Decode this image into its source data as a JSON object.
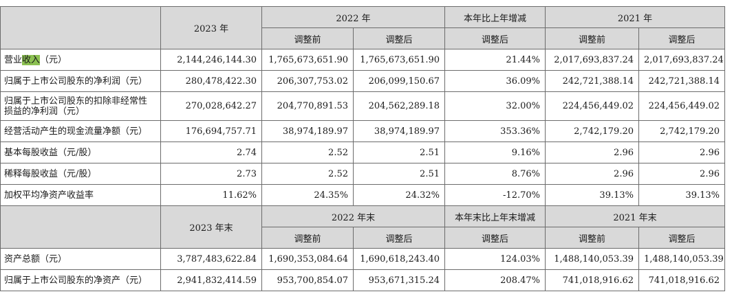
{
  "table1": {
    "header": {
      "col1": "2023 年",
      "group2022": "2022 年",
      "change": "本年比上年增减",
      "group2021": "2021 年",
      "sub_before": "调整前",
      "sub_after": "调整后",
      "change_sub": "调整后",
      "sub2021_before": "调整前",
      "sub2021_after": "调整后"
    },
    "row0_label_pre": "营业",
    "row0_label_hl": "收入",
    "row0_label_post": "（元）",
    "rows": [
      {
        "v2023": "2,144,246,144.30",
        "v2022b": "1,765,673,651.90",
        "v2022a": "1,765,673,651.90",
        "chg": "21.44%",
        "v2021b": "2,017,693,837.24",
        "v2021a": "2,017,693,837.24"
      },
      {
        "label": "归属于上市公司股东的净利润（元）",
        "v2023": "280,478,422.30",
        "v2022b": "206,307,753.02",
        "v2022a": "206,099,150.67",
        "chg": "36.09%",
        "v2021b": "242,721,388.14",
        "v2021a": "242,721,388.14"
      },
      {
        "label": "归属于上市公司股东的扣除非经常性损益的净利润（元）",
        "v2023": "270,028,642.27",
        "v2022b": "204,770,891.53",
        "v2022a": "204,562,289.18",
        "chg": "32.00%",
        "v2021b": "224,456,449.02",
        "v2021a": "224,456,449.02"
      },
      {
        "label": "经营活动产生的现金流量净额（元）",
        "v2023": "176,694,757.71",
        "v2022b": "38,974,189.97",
        "v2022a": "38,974,189.97",
        "chg": "353.36%",
        "v2021b": "2,742,179.20",
        "v2021a": "2,742,179.20"
      },
      {
        "label": "基本每股收益（元/股）",
        "v2023": "2.74",
        "v2022b": "2.52",
        "v2022a": "2.51",
        "chg": "9.16%",
        "v2021b": "2.96",
        "v2021a": "2.96"
      },
      {
        "label": "稀释每股收益（元/股）",
        "v2023": "2.73",
        "v2022b": "2.52",
        "v2022a": "2.51",
        "chg": "8.76%",
        "v2021b": "2.96",
        "v2021a": "2.96"
      },
      {
        "label": "加权平均净资产收益率",
        "v2023": "11.62%",
        "v2022b": "24.35%",
        "v2022a": "24.32%",
        "chg": "-12.70%",
        "v2021b": "39.13%",
        "v2021a": "39.13%"
      }
    ]
  },
  "table2": {
    "header": {
      "col1": "2023 年末",
      "group2022": "2022 年末",
      "change": "本年末比上年末增减",
      "group2021": "2021 年末",
      "sub_before": "调整前",
      "sub_after": "调整后",
      "change_sub": "调整后",
      "sub2021_before": "调整前",
      "sub2021_after": "调整后"
    },
    "rows": [
      {
        "label": "资产总额（元）",
        "v2023": "3,787,483,622.84",
        "v2022b": "1,690,353,084.64",
        "v2022a": "1,690,618,243.40",
        "chg": "124.03%",
        "v2021b": "1,488,140,053.39",
        "v2021a": "1,488,140,053.39"
      },
      {
        "label": "归属于上市公司股东的净资产（元）",
        "v2023": "2,941,832,414.59",
        "v2022b": "953,700,854.07",
        "v2022a": "953,671,315.24",
        "chg": "208.47%",
        "v2021b": "741,018,916.62",
        "v2021a": "741,018,916.62"
      }
    ]
  }
}
